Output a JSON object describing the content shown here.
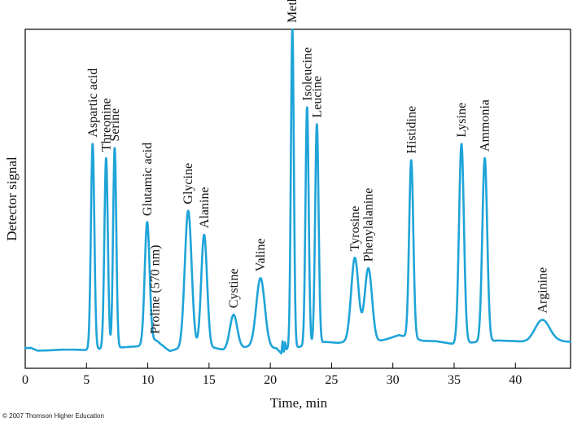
{
  "colors": {
    "trace": "#1fa4d8",
    "frame": "#000000",
    "background": "#ffffff"
  },
  "credit": "© 2007 Thomson Higher Education",
  "chart_data": {
    "type": "line",
    "title": "",
    "xlabel": "Time, min",
    "ylabel": "Detector signal",
    "xlim": [
      0,
      44.5
    ],
    "ylim": [
      0,
      100
    ],
    "grid": false,
    "legend": "none",
    "x_ticks": [
      0,
      5,
      10,
      15,
      20,
      25,
      30,
      35,
      40
    ],
    "y_ticks_shown": false,
    "baseline": [
      [
        0,
        6.0
      ],
      [
        0.5,
        6.0
      ],
      [
        1,
        5.2
      ],
      [
        2,
        5.3
      ],
      [
        3,
        5.5
      ],
      [
        4,
        5.5
      ],
      [
        4.8,
        5.4
      ],
      [
        10.8,
        6.9
      ],
      [
        11.2,
        6.6
      ],
      [
        11.8,
        5.1
      ],
      [
        12.3,
        5.6
      ],
      [
        15.5,
        6.0
      ],
      [
        16.2,
        5.4
      ],
      [
        18.2,
        6.3
      ],
      [
        18.6,
        6.0
      ],
      [
        20.5,
        5.9
      ],
      [
        20.9,
        4.4
      ],
      [
        21.0,
        8.0
      ],
      [
        21.1,
        4.9
      ],
      [
        21.2,
        7.7
      ],
      [
        21.3,
        5.6
      ],
      [
        24.5,
        7.8
      ],
      [
        25.5,
        7.5
      ],
      [
        26.5,
        7.9
      ],
      [
        28.7,
        7.9
      ],
      [
        29.5,
        8.6
      ],
      [
        30.5,
        9.8
      ],
      [
        32.5,
        8.1
      ],
      [
        33.5,
        8.0
      ],
      [
        34.9,
        7.2
      ],
      [
        38.6,
        8.2
      ],
      [
        40,
        8.0
      ],
      [
        41,
        7.7
      ],
      [
        43.5,
        8.0
      ],
      [
        44.5,
        7.8
      ]
    ],
    "peaks": [
      {
        "name": "Aspartic acid",
        "time": 5.5,
        "height": 66.2,
        "width": 0.14
      },
      {
        "name": "Threonine",
        "time": 6.6,
        "height": 62.0,
        "width": 0.14
      },
      {
        "name": "Serine",
        "time": 7.3,
        "height": 65.0,
        "width": 0.13
      },
      {
        "name": "Glutamic acid",
        "time": 9.95,
        "height": 43.0,
        "width": 0.2
      },
      {
        "name": "Proline (570 nm)",
        "time": 10.6,
        "height": 8.2,
        "width": 0.3
      },
      {
        "name": "Glycine",
        "time": 13.3,
        "height": 46.5,
        "width": 0.28
      },
      {
        "name": "Alanine",
        "time": 14.6,
        "height": 39.4,
        "width": 0.24
      },
      {
        "name": "Cystine",
        "time": 17.0,
        "height": 15.8,
        "width": 0.3
      },
      {
        "name": "Valine",
        "time": 19.2,
        "height": 26.6,
        "width": 0.35
      },
      {
        "name": "Methionine",
        "time": 21.8,
        "height": 100.0,
        "width": 0.12
      },
      {
        "name": "Isoleucine",
        "time": 23.0,
        "height": 77.0,
        "width": 0.13
      },
      {
        "name": "Leucine",
        "time": 23.8,
        "height": 72.0,
        "width": 0.14
      },
      {
        "name": "Tyrosine",
        "time": 26.9,
        "height": 32.6,
        "width": 0.3
      },
      {
        "name": "Phenylalanine",
        "time": 28.0,
        "height": 29.5,
        "width": 0.3
      },
      {
        "name": "Histidine",
        "time": 31.5,
        "height": 61.4,
        "width": 0.17
      },
      {
        "name": "Lysine",
        "time": 35.6,
        "height": 66.2,
        "width": 0.2
      },
      {
        "name": "Ammonia",
        "time": 37.5,
        "height": 62.0,
        "width": 0.2
      },
      {
        "name": "Arginine",
        "time": 42.2,
        "height": 14.3,
        "width": 0.6
      }
    ]
  }
}
